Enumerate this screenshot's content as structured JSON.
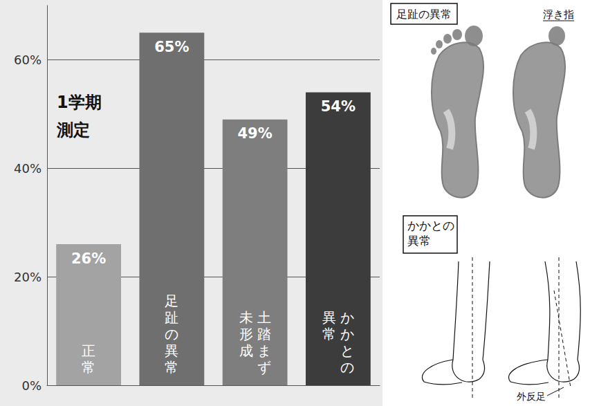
{
  "chart_data": {
    "type": "bar",
    "categories": [
      "正常",
      "足趾の異常",
      "土踏まず\n未形成",
      "かかとの\n異常"
    ],
    "values": [
      26,
      65,
      49,
      54
    ],
    "value_labels": [
      "26%",
      "65%",
      "49%",
      "54%"
    ],
    "colors": [
      "#a3a3a3",
      "#6f6f6f",
      "#7e7e7e",
      "#3c3c3c"
    ],
    "ylim": [
      0,
      70
    ],
    "yticks": [
      {
        "value": 0,
        "label": "0%"
      },
      {
        "value": 20,
        "label": "20%"
      },
      {
        "value": 40,
        "label": "40%"
      },
      {
        "value": 60,
        "label": "60%"
      }
    ],
    "grid": true,
    "data_labels": true,
    "annotations": [
      "1学期",
      "測定"
    ]
  },
  "figures": {
    "toe": {
      "title": "足趾の異常",
      "label": "浮き指"
    },
    "heel": {
      "title": "かかとの異常",
      "label": "外反足"
    }
  }
}
